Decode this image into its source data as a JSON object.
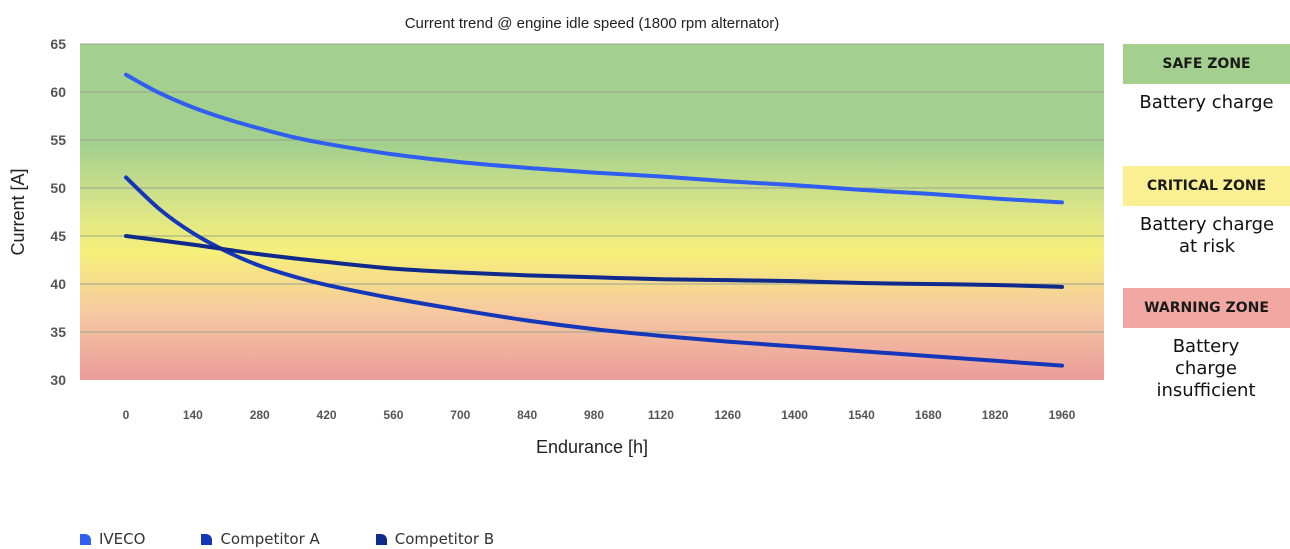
{
  "chart_data": {
    "type": "line",
    "title": "Current trend @ engine idle speed (1800 rpm alternator)",
    "xlabel": "Endurance [h]",
    "ylabel": "Current [A]",
    "x_ticks": [
      0,
      140,
      280,
      420,
      560,
      700,
      840,
      980,
      1120,
      1260,
      1400,
      1540,
      1680,
      1820,
      1960
    ],
    "y_ticks": [
      30,
      35,
      40,
      45,
      50,
      55,
      60,
      65
    ],
    "ylim": [
      30,
      65
    ],
    "xlim": [
      0,
      1960
    ],
    "grid": true,
    "background_gradient": [
      "#a3d08e",
      "#f6f07a",
      "#f2a8a2"
    ],
    "series": [
      {
        "name": "IVECO",
        "color": "#2f5ef0",
        "x": [
          0,
          70,
          140,
          210,
          280,
          350,
          420,
          560,
          700,
          840,
          980,
          1120,
          1260,
          1400,
          1540,
          1680,
          1820,
          1960
        ],
        "y": [
          61.8,
          59.9,
          58.4,
          57.2,
          56.2,
          55.3,
          54.6,
          53.5,
          52.7,
          52.1,
          51.6,
          51.2,
          50.7,
          50.3,
          49.8,
          49.4,
          48.9,
          48.5
        ]
      },
      {
        "name": "Competitor A",
        "color": "#1436b8",
        "x": [
          0,
          70,
          140,
          210,
          280,
          350,
          420,
          560,
          700,
          840,
          980,
          1120,
          1260,
          1400,
          1540,
          1680,
          1820,
          1960
        ],
        "y": [
          51.1,
          47.8,
          45.3,
          43.4,
          41.9,
          40.8,
          39.9,
          38.5,
          37.3,
          36.2,
          35.3,
          34.6,
          34.0,
          33.5,
          33.0,
          32.5,
          32.0,
          31.5
        ]
      },
      {
        "name": "Competitor B",
        "color": "#0f2a8c",
        "x": [
          0,
          140,
          280,
          420,
          560,
          700,
          840,
          980,
          1120,
          1260,
          1400,
          1540,
          1680,
          1820,
          1960
        ],
        "y": [
          45.0,
          44.1,
          43.1,
          42.3,
          41.6,
          41.2,
          40.9,
          40.7,
          40.5,
          40.4,
          40.3,
          40.1,
          40.0,
          39.9,
          39.7
        ]
      }
    ]
  },
  "zones": [
    {
      "label": "SAFE ZONE",
      "description": "Battery charge",
      "color": "#a3d08e"
    },
    {
      "label": "CRITICAL ZONE",
      "description": "Battery charge at risk",
      "color": "#faf093"
    },
    {
      "label": "WARNING ZONE",
      "description": "Battery charge insufficient",
      "color": "#f2a8a2"
    }
  ],
  "legend": [
    {
      "name": "IVECO",
      "color": "#2f5ef0"
    },
    {
      "name": "Competitor A",
      "color": "#1436b8"
    },
    {
      "name": "Competitor B",
      "color": "#0f2a8c"
    }
  ]
}
